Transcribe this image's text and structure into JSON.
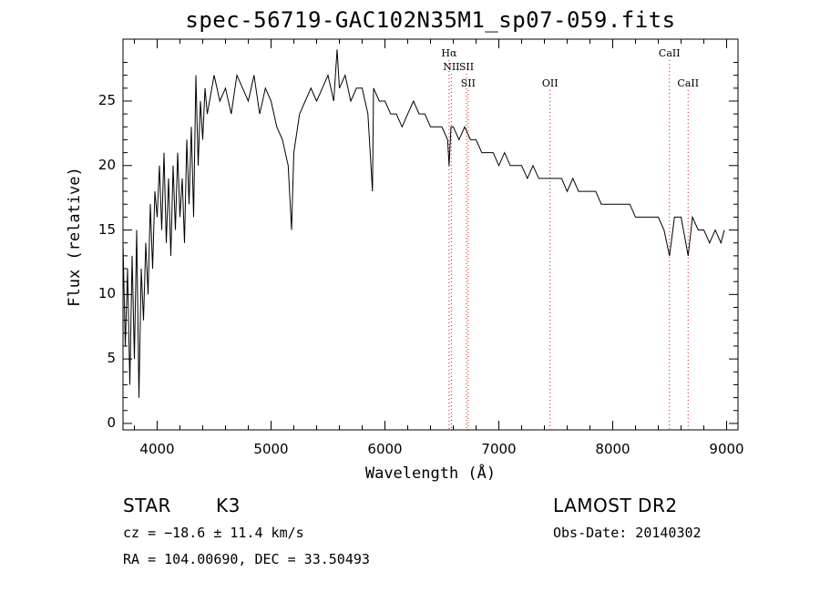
{
  "chart_data": {
    "type": "line",
    "title": "spec-56719-GAC102N35M1_sp07-059.fits",
    "xlabel": "Wavelength (Å)",
    "ylabel": "Flux (relative)",
    "xlim": [
      3700,
      9100
    ],
    "ylim": [
      -0.5,
      29.8
    ],
    "x_ticks": [
      4000,
      5000,
      6000,
      7000,
      8000,
      9000
    ],
    "y_ticks": [
      0,
      5,
      10,
      15,
      20,
      25
    ],
    "series": [
      {
        "x": [
          3700,
          3720,
          3740,
          3760,
          3780,
          3800,
          3820,
          3840,
          3860,
          3880,
          3900,
          3920,
          3940,
          3960,
          3980,
          4000,
          4020,
          4040,
          4060,
          4080,
          4100,
          4120,
          4140,
          4160,
          4180,
          4200,
          4220,
          4240,
          4260,
          4280,
          4300,
          4320,
          4340,
          4360,
          4380,
          4400,
          4420,
          4440,
          4460,
          4480,
          4500,
          4550,
          4600,
          4650,
          4700,
          4750,
          4800,
          4850,
          4900,
          4950,
          5000,
          5050,
          5100,
          5150,
          5180,
          5200,
          5250,
          5300,
          5350,
          5400,
          5450,
          5500,
          5550,
          5580,
          5600,
          5650,
          5700,
          5750,
          5800,
          5850,
          5890,
          5900,
          5950,
          6000,
          6050,
          6100,
          6150,
          6200,
          6250,
          6300,
          6350,
          6400,
          6450,
          6500,
          6550,
          6563,
          6580,
          6600,
          6650,
          6700,
          6750,
          6800,
          6850,
          6900,
          6950,
          7000,
          7050,
          7100,
          7150,
          7200,
          7250,
          7300,
          7350,
          7400,
          7450,
          7500,
          7550,
          7600,
          7650,
          7700,
          7750,
          7800,
          7850,
          7900,
          7950,
          8000,
          8050,
          8100,
          8150,
          8200,
          8250,
          8300,
          8350,
          8400,
          8450,
          8498,
          8542,
          8600,
          8662,
          8700,
          8750,
          8800,
          8850,
          8900,
          8950,
          8980
        ],
        "y": [
          14,
          6,
          12,
          3,
          13,
          5,
          15,
          2,
          12,
          8,
          14,
          10,
          17,
          12,
          18,
          16,
          20,
          15,
          21,
          14,
          19,
          13,
          20,
          15,
          21,
          16,
          19,
          14,
          22,
          17,
          23,
          16,
          27,
          20,
          25,
          22,
          26,
          24,
          25,
          26,
          27,
          25,
          26,
          24,
          27,
          26,
          25,
          27,
          24,
          26,
          25,
          23,
          22,
          20,
          15,
          21,
          24,
          25,
          26,
          25,
          26,
          27,
          25,
          29,
          26,
          27,
          25,
          26,
          26,
          24,
          18,
          26,
          25,
          25,
          24,
          24,
          23,
          24,
          25,
          24,
          24,
          23,
          23,
          23,
          22,
          20,
          23,
          23,
          22,
          23,
          22,
          22,
          21,
          21,
          21,
          20,
          21,
          20,
          20,
          20,
          19,
          20,
          19,
          19,
          19,
          19,
          19,
          18,
          19,
          18,
          18,
          18,
          18,
          17,
          17,
          17,
          17,
          17,
          17,
          16,
          16,
          16,
          16,
          16,
          15,
          13,
          16,
          16,
          13,
          16,
          15,
          15,
          14,
          15,
          14,
          15
        ]
      }
    ],
    "line_markers": [
      {
        "label": "Hα",
        "x": 6563,
        "row": 0
      },
      {
        "label": "NII",
        "x": 6583,
        "row": 1
      },
      {
        "label": "SII",
        "x": 6716,
        "row": 1
      },
      {
        "label": "SII",
        "x": 6731,
        "row": 2
      },
      {
        "label": "OII",
        "x": 7450,
        "row": 2
      },
      {
        "label": "CaII",
        "x": 8498,
        "row": 0
      },
      {
        "label": "CaII",
        "x": 8662,
        "row": 2
      }
    ],
    "marker_color": "#d01818",
    "line_color": "#000000",
    "grid": false,
    "legend": "none"
  },
  "info": {
    "object_class": "STAR",
    "subclass": "K3",
    "survey": "LAMOST DR2",
    "cz": "cz = −18.6 ± 11.4 km/s",
    "obs_date": "Obs-Date: 20140302",
    "coords": "RA = 104.00690, DEC =  33.50493"
  }
}
